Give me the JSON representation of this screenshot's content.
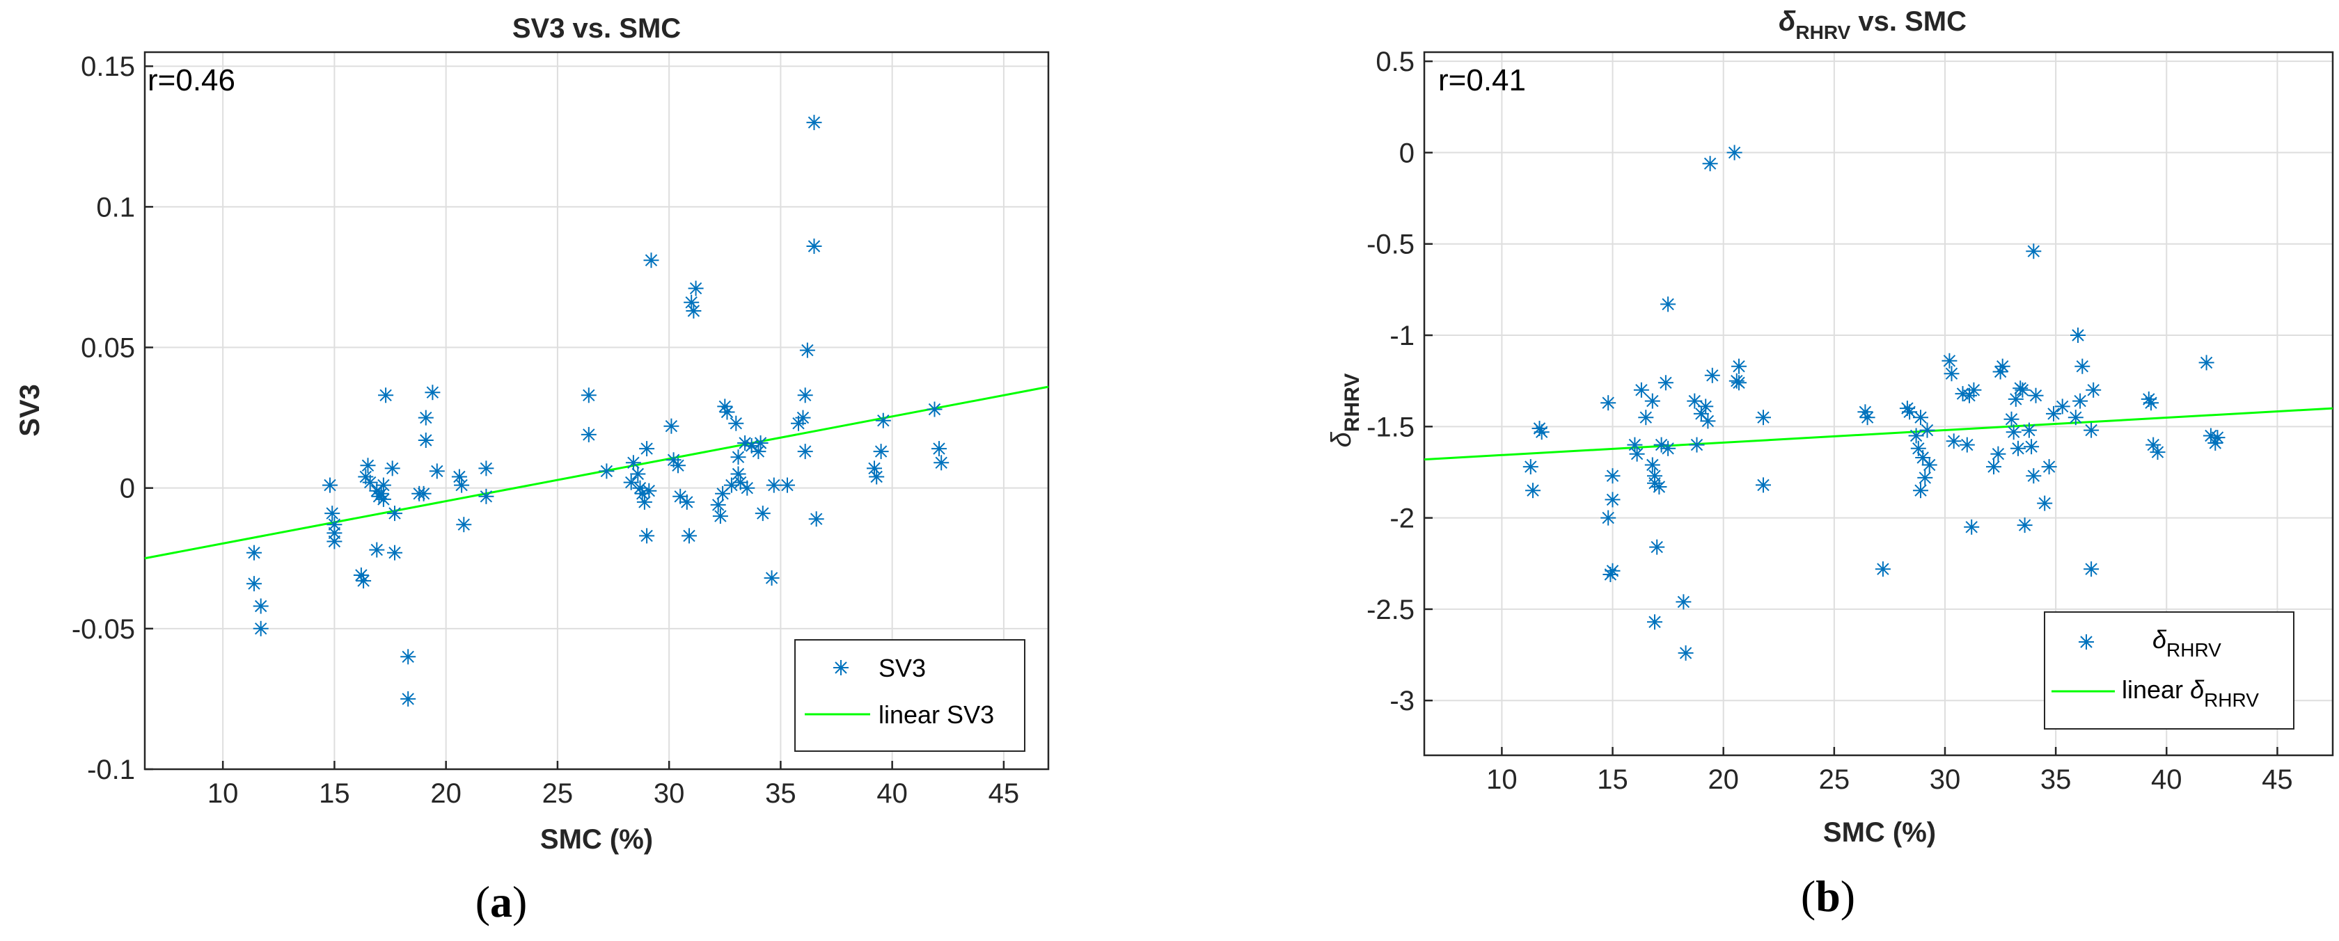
{
  "chart_data": [
    {
      "type": "scatter",
      "title": "SV3 vs. SMC",
      "xlabel": "SMC (%)",
      "ylabel": "SV3",
      "xlim": [
        6.5,
        47
      ],
      "ylim": [
        -0.1,
        0.155
      ],
      "x_ticks": [
        10,
        15,
        20,
        25,
        30,
        35,
        40,
        45
      ],
      "x_tick_labels": [
        "10",
        "15",
        "20",
        "25",
        "30",
        "35",
        "40",
        "45"
      ],
      "y_ticks": [
        -0.1,
        -0.05,
        0,
        0.05,
        0.1,
        0.15
      ],
      "y_tick_labels": [
        "-0.1",
        "-0.05",
        "0",
        "0.05",
        "0.1",
        "0.15"
      ],
      "grid": true,
      "annotation": "r=0.46",
      "legend": {
        "position": "bottom-right",
        "entries": [
          "SV3",
          "linear SV3"
        ]
      },
      "series": [
        {
          "name": "SV3",
          "marker": "asterisk",
          "color": "#0072BD",
          "points": [
            [
              11.4,
              -0.023
            ],
            [
              11.4,
              -0.034
            ],
            [
              11.7,
              -0.042
            ],
            [
              11.7,
              -0.05
            ],
            [
              14.8,
              0.001
            ],
            [
              14.9,
              -0.009
            ],
            [
              15.0,
              -0.013
            ],
            [
              15.0,
              -0.016
            ],
            [
              15.0,
              -0.019
            ],
            [
              16.2,
              -0.031
            ],
            [
              16.3,
              -0.033
            ],
            [
              16.4,
              0.004
            ],
            [
              16.5,
              0.008
            ],
            [
              16.6,
              0.002
            ],
            [
              16.9,
              -0.001
            ],
            [
              17.0,
              -0.003
            ],
            [
              17.1,
              -0.002
            ],
            [
              17.2,
              0.001
            ],
            [
              17.2,
              -0.004
            ],
            [
              16.9,
              -0.022
            ],
            [
              17.3,
              0.033
            ],
            [
              17.6,
              0.007
            ],
            [
              17.7,
              -0.009
            ],
            [
              17.7,
              -0.023
            ],
            [
              18.3,
              -0.06
            ],
            [
              18.3,
              -0.075
            ],
            [
              18.8,
              -0.002
            ],
            [
              19.0,
              -0.002
            ],
            [
              19.1,
              0.025
            ],
            [
              19.1,
              0.017
            ],
            [
              19.4,
              0.034
            ],
            [
              19.6,
              0.006
            ],
            [
              20.6,
              0.004
            ],
            [
              20.7,
              0.001
            ],
            [
              20.8,
              -0.013
            ],
            [
              21.8,
              0.007
            ],
            [
              21.8,
              -0.003
            ],
            [
              26.4,
              0.033
            ],
            [
              26.4,
              0.019
            ],
            [
              27.2,
              0.006
            ],
            [
              28.3,
              0.002
            ],
            [
              28.4,
              0.009
            ],
            [
              28.6,
              0.005
            ],
            [
              28.7,
              0.0
            ],
            [
              28.8,
              -0.002
            ],
            [
              28.9,
              -0.005
            ],
            [
              29.0,
              -0.017
            ],
            [
              29.0,
              0.014
            ],
            [
              29.1,
              -0.001
            ],
            [
              29.2,
              0.081
            ],
            [
              30.1,
              0.022
            ],
            [
              30.2,
              0.01
            ],
            [
              30.4,
              0.008
            ],
            [
              30.5,
              -0.003
            ],
            [
              30.8,
              -0.005
            ],
            [
              30.9,
              -0.017
            ],
            [
              31.0,
              0.066
            ],
            [
              31.1,
              0.063
            ],
            [
              31.2,
              0.071
            ],
            [
              32.2,
              -0.006
            ],
            [
              32.3,
              -0.01
            ],
            [
              32.4,
              -0.002
            ],
            [
              32.5,
              0.029
            ],
            [
              32.6,
              0.027
            ],
            [
              32.8,
              0.001
            ],
            [
              33.0,
              0.023
            ],
            [
              33.1,
              0.011
            ],
            [
              33.1,
              0.005
            ],
            [
              33.2,
              0.002
            ],
            [
              33.4,
              0.016
            ],
            [
              33.5,
              0.0
            ],
            [
              33.7,
              0.015
            ],
            [
              34.0,
              0.013
            ],
            [
              34.1,
              0.016
            ],
            [
              34.2,
              -0.009
            ],
            [
              34.6,
              -0.032
            ],
            [
              34.7,
              0.001
            ],
            [
              35.3,
              0.001
            ],
            [
              35.8,
              0.023
            ],
            [
              36.0,
              0.025
            ],
            [
              36.1,
              0.033
            ],
            [
              36.1,
              0.013
            ],
            [
              36.2,
              0.049
            ],
            [
              36.5,
              0.13
            ],
            [
              36.5,
              0.086
            ],
            [
              36.6,
              -0.011
            ],
            [
              39.2,
              0.007
            ],
            [
              39.3,
              0.004
            ],
            [
              39.5,
              0.013
            ],
            [
              39.6,
              0.024
            ],
            [
              41.9,
              0.028
            ],
            [
              42.1,
              0.014
            ],
            [
              42.2,
              0.009
            ]
          ]
        },
        {
          "name": "linear SV3",
          "type": "line",
          "color": "#00ff00",
          "x": [
            6.5,
            47
          ],
          "y": [
            -0.025,
            0.036
          ]
        }
      ]
    },
    {
      "type": "scatter",
      "title": "δRHRV vs. SMC",
      "title_main": "δ",
      "title_sub": "RHRV",
      "title_rest": " vs. SMC",
      "xlabel": "SMC (%)",
      "ylabel": "δRHRV",
      "ylabel_main": "δ",
      "ylabel_sub": "RHRV",
      "xlim": [
        6.5,
        47.5
      ],
      "ylim": [
        -3.3,
        0.55
      ],
      "x_ticks": [
        10,
        15,
        20,
        25,
        30,
        35,
        40,
        45
      ],
      "x_tick_labels": [
        "10",
        "15",
        "20",
        "25",
        "30",
        "35",
        "40",
        "45"
      ],
      "y_ticks": [
        -3,
        -2.5,
        -2,
        -1.5,
        -1,
        -0.5,
        0,
        0.5
      ],
      "y_tick_labels": [
        "-3",
        "-2.5",
        "-2",
        "-1.5",
        "-1",
        "-0.5",
        "0",
        "0.5"
      ],
      "grid": true,
      "annotation": "r=0.41",
      "legend": {
        "position": "bottom-right",
        "entries": [
          "δRHRV",
          "linear δRHRV"
        ],
        "entry1_main": "δ",
        "entry1_sub": "RHRV",
        "entry2_prefix": "linear ",
        "entry2_main": "δ",
        "entry2_sub": "RHRV"
      },
      "series": [
        {
          "name": "δRHRV",
          "marker": "asterisk",
          "color": "#0072BD",
          "points": [
            [
              11.3,
              -1.72
            ],
            [
              11.4,
              -1.85
            ],
            [
              11.7,
              -1.51
            ],
            [
              11.8,
              -1.53
            ],
            [
              14.8,
              -1.37
            ],
            [
              14.8,
              -2.0
            ],
            [
              14.9,
              -2.31
            ],
            [
              15.0,
              -2.29
            ],
            [
              15.0,
              -1.9
            ],
            [
              15.0,
              -1.77
            ],
            [
              16.0,
              -1.6
            ],
            [
              16.1,
              -1.65
            ],
            [
              16.3,
              -1.3
            ],
            [
              16.5,
              -1.45
            ],
            [
              16.8,
              -1.36
            ],
            [
              16.8,
              -1.71
            ],
            [
              16.9,
              -1.77
            ],
            [
              16.9,
              -1.81
            ],
            [
              16.9,
              -2.57
            ],
            [
              17.0,
              -2.16
            ],
            [
              17.1,
              -1.83
            ],
            [
              17.2,
              -1.6
            ],
            [
              17.4,
              -1.26
            ],
            [
              17.5,
              -0.83
            ],
            [
              17.5,
              -1.62
            ],
            [
              18.2,
              -2.46
            ],
            [
              18.3,
              -2.74
            ],
            [
              18.7,
              -1.36
            ],
            [
              18.8,
              -1.6
            ],
            [
              19.0,
              -1.43
            ],
            [
              19.2,
              -1.39
            ],
            [
              19.3,
              -1.47
            ],
            [
              19.4,
              -0.06
            ],
            [
              19.5,
              -1.22
            ],
            [
              20.5,
              0.0
            ],
            [
              20.6,
              -1.25
            ],
            [
              20.7,
              -1.17
            ],
            [
              20.7,
              -1.26
            ],
            [
              21.8,
              -1.45
            ],
            [
              21.8,
              -1.82
            ],
            [
              26.4,
              -1.42
            ],
            [
              26.5,
              -1.45
            ],
            [
              27.2,
              -2.28
            ],
            [
              28.3,
              -1.4
            ],
            [
              28.4,
              -1.42
            ],
            [
              28.7,
              -1.55
            ],
            [
              28.8,
              -1.62
            ],
            [
              28.9,
              -1.85
            ],
            [
              28.9,
              -1.45
            ],
            [
              29.0,
              -1.67
            ],
            [
              29.1,
              -1.78
            ],
            [
              29.2,
              -1.52
            ],
            [
              29.3,
              -1.71
            ],
            [
              30.2,
              -1.14
            ],
            [
              30.3,
              -1.21
            ],
            [
              30.4,
              -1.58
            ],
            [
              30.8,
              -1.32
            ],
            [
              31.0,
              -1.6
            ],
            [
              31.1,
              -1.33
            ],
            [
              31.2,
              -2.05
            ],
            [
              31.3,
              -1.3
            ],
            [
              32.2,
              -1.72
            ],
            [
              32.4,
              -1.65
            ],
            [
              32.5,
              -1.2
            ],
            [
              32.6,
              -1.17
            ],
            [
              33.0,
              -1.46
            ],
            [
              33.1,
              -1.53
            ],
            [
              33.2,
              -1.35
            ],
            [
              33.3,
              -1.62
            ],
            [
              33.4,
              -1.29
            ],
            [
              33.5,
              -1.3
            ],
            [
              33.6,
              -2.04
            ],
            [
              33.8,
              -1.52
            ],
            [
              33.9,
              -1.61
            ],
            [
              34.0,
              -0.54
            ],
            [
              34.0,
              -1.77
            ],
            [
              34.1,
              -1.33
            ],
            [
              34.5,
              -1.92
            ],
            [
              34.7,
              -1.72
            ],
            [
              34.9,
              -1.43
            ],
            [
              35.3,
              -1.39
            ],
            [
              35.9,
              -1.45
            ],
            [
              36.0,
              -1.0
            ],
            [
              36.1,
              -1.36
            ],
            [
              36.2,
              -1.17
            ],
            [
              36.6,
              -1.52
            ],
            [
              36.6,
              -2.28
            ],
            [
              36.7,
              -1.3
            ],
            [
              39.2,
              -1.35
            ],
            [
              39.3,
              -1.37
            ],
            [
              39.4,
              -1.6
            ],
            [
              39.6,
              -1.64
            ],
            [
              41.8,
              -1.15
            ],
            [
              42.0,
              -1.55
            ],
            [
              42.2,
              -1.59
            ],
            [
              42.3,
              -1.56
            ]
          ]
        },
        {
          "name": "linear δRHRV",
          "type": "line",
          "color": "#00ff00",
          "x": [
            6.5,
            47.5
          ],
          "y": [
            -1.68,
            -1.4
          ]
        }
      ]
    }
  ],
  "subfigure_labels": [
    "(a)",
    "(b)"
  ]
}
